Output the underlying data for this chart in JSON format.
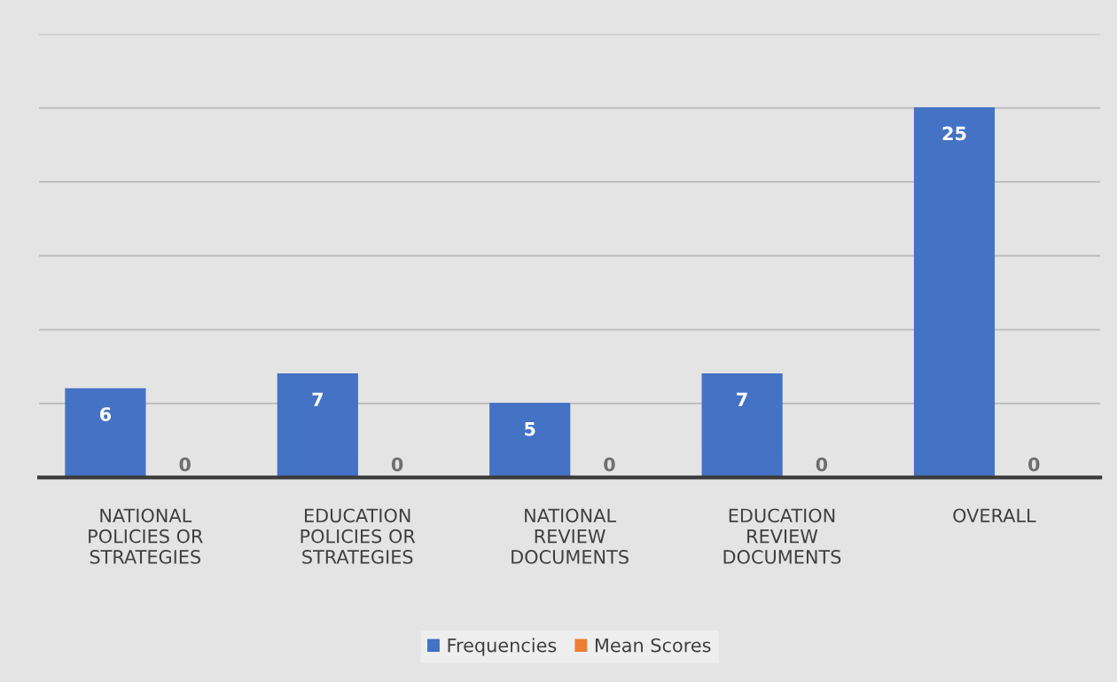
{
  "chart_data": {
    "type": "bar",
    "categories": [
      "NATIONAL\nPOLICIES OR\nSTRATEGIES",
      "EDUCATION\nPOLICIES OR\nSTRATEGIES",
      "NATIONAL\nREVIEW\nDOCUMENTS",
      "EDUCATION\nREVIEW\nDOCUMENTS",
      "OVERALL"
    ],
    "series": [
      {
        "name": "Frequencies",
        "color": "#4472c4",
        "values": [
          6,
          7,
          5,
          7,
          25
        ]
      },
      {
        "name": "Mean Scores",
        "color": "#ed7d31",
        "values": [
          0,
          0,
          0,
          0,
          0
        ]
      }
    ],
    "ylim": [
      0,
      30
    ],
    "yticks": [
      {
        "value": 0,
        "label": null
      },
      {
        "value": 5,
        "label": null
      },
      {
        "value": 10,
        "label": null
      },
      {
        "value": 15,
        "label": null
      },
      {
        "value": 20,
        "label": null
      },
      {
        "value": 25,
        "label": null
      },
      {
        "value": 30,
        "label": null
      }
    ],
    "tick_labels": "x",
    "grid": "y",
    "legend": "bottom",
    "data_labels": true
  }
}
